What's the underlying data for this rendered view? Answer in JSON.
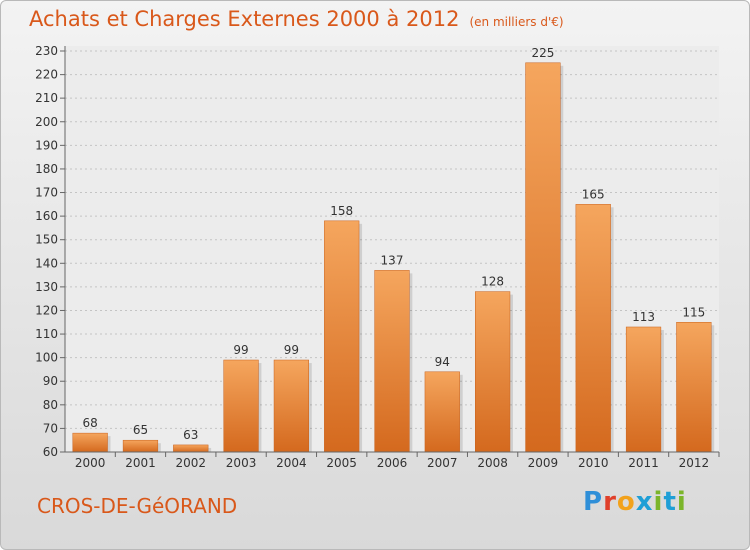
{
  "header": {
    "title": "Achats et Charges Externes 2000 à 2012",
    "unit": "(en milliers d'€)"
  },
  "footer": {
    "commune": "CROS-DE-GéORAND",
    "brand": "Proxiti",
    "brand_colors": [
      "#2f8fd8",
      "#e0402a",
      "#f2a21c",
      "#1f9fd6",
      "#7bb52a",
      "#1f9fd6",
      "#7bb52a"
    ]
  },
  "colors": {
    "title": "#d9581a",
    "bar_top": "#f5a65e",
    "bar_bottom": "#d4691e",
    "axis_text": "#333333"
  },
  "chart_data": {
    "type": "bar",
    "title": "Achats et Charges Externes 2000 à 2012",
    "categories": [
      "2000",
      "2001",
      "2002",
      "2003",
      "2004",
      "2005",
      "2006",
      "2007",
      "2008",
      "2009",
      "2010",
      "2011",
      "2012"
    ],
    "values": [
      68,
      65,
      63,
      99,
      99,
      158,
      137,
      94,
      128,
      225,
      165,
      113,
      115
    ],
    "ylim": [
      60,
      230
    ],
    "yticks": [
      60,
      70,
      80,
      90,
      100,
      110,
      120,
      130,
      140,
      150,
      160,
      170,
      180,
      190,
      200,
      210,
      220,
      230
    ],
    "grid": "horizontal dashed",
    "legend": "none"
  }
}
